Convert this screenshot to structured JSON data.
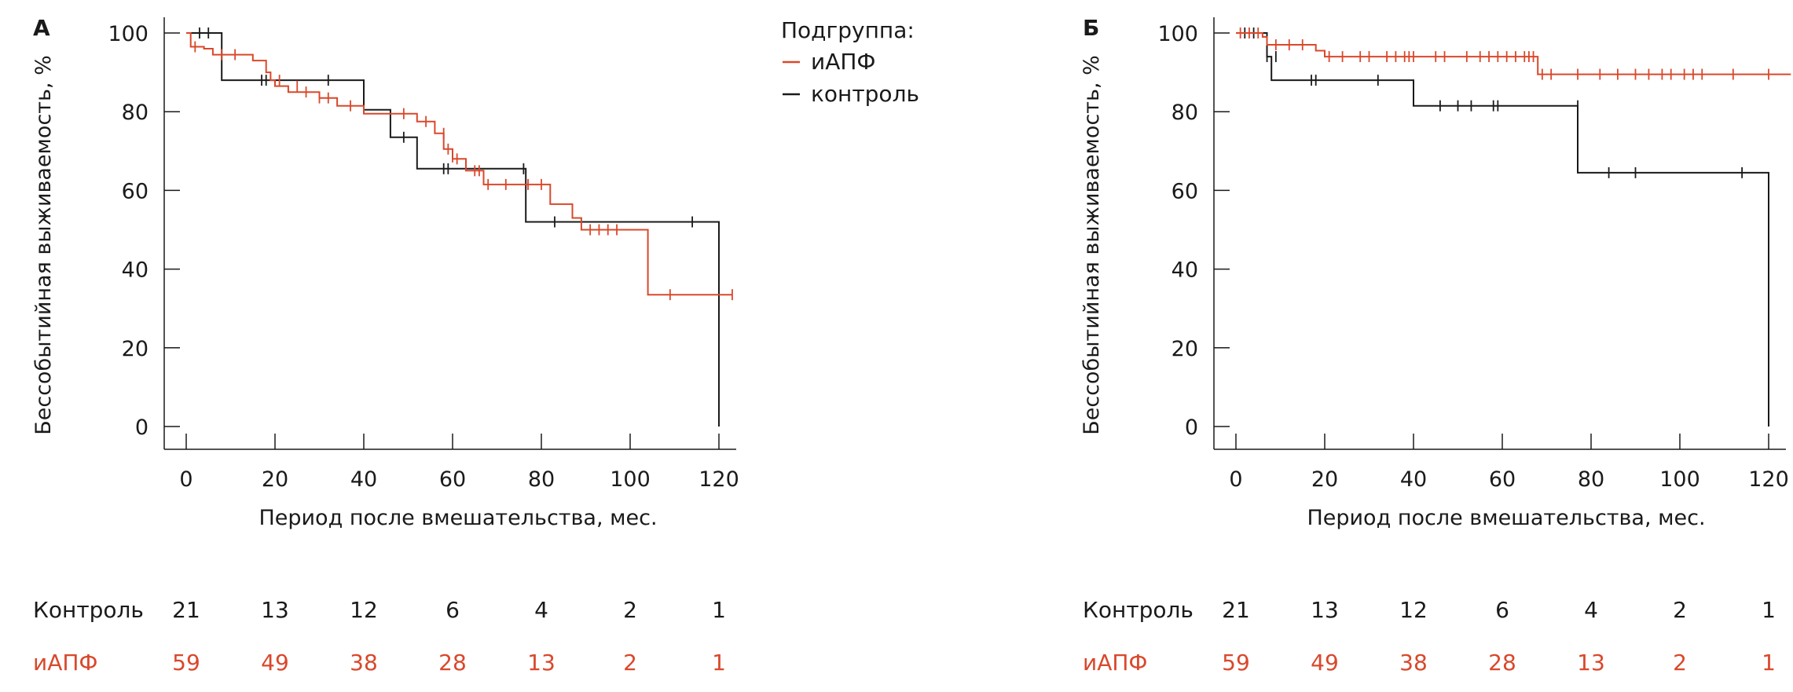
{
  "colors": {
    "iapf": "#d9482b",
    "control": "#1a1a1a",
    "axis": "#1a1a1a"
  },
  "legend": {
    "title": "Подгруппа:",
    "items": [
      {
        "key": "iapf",
        "label": "иАПФ",
        "color": "#d9482b"
      },
      {
        "key": "control",
        "label": "контроль",
        "color": "#1a1a1a"
      }
    ]
  },
  "chart_data": [
    {
      "type": "line",
      "panel": "А",
      "xlabel": "Период после вмешательства, мес.",
      "ylabel": "Бессобытийная выживаемость, %",
      "xlim": [
        0,
        124
      ],
      "ylim": [
        0,
        100
      ],
      "xticks": [
        "0",
        "20",
        "40",
        "60",
        "80",
        "100",
        "120"
      ],
      "yticks": [
        "0",
        "20",
        "40",
        "60",
        "80",
        "100"
      ],
      "series": [
        {
          "name": "контроль",
          "key": "control",
          "steps": [
            [
              0,
              100
            ],
            [
              8,
              100
            ],
            [
              8,
              88
            ],
            [
              40,
              88
            ],
            [
              40,
              80.5
            ],
            [
              46,
              80.5
            ],
            [
              46,
              73.5
            ],
            [
              52,
              73.5
            ],
            [
              52,
              65.5
            ],
            [
              76.5,
              65.5
            ],
            [
              76.5,
              52
            ],
            [
              120,
              52
            ],
            [
              120,
              0
            ]
          ],
          "censors": [
            [
              3,
              100
            ],
            [
              5,
              100
            ],
            [
              17,
              88
            ],
            [
              18,
              88
            ],
            [
              32,
              88
            ],
            [
              49,
              73.5
            ],
            [
              58,
              65.5
            ],
            [
              59,
              65.5
            ],
            [
              76,
              65.5
            ],
            [
              83,
              52
            ],
            [
              114,
              52
            ]
          ]
        },
        {
          "name": "иАПФ",
          "key": "iapf",
          "steps": [
            [
              0,
              100
            ],
            [
              1,
              100
            ],
            [
              1,
              96.5
            ],
            [
              4,
              96.5
            ],
            [
              4,
              96
            ],
            [
              6,
              96
            ],
            [
              6,
              94.5
            ],
            [
              15,
              94.5
            ],
            [
              15,
              93
            ],
            [
              18,
              93
            ],
            [
              18,
              90
            ],
            [
              19,
              90
            ],
            [
              19,
              88
            ],
            [
              20,
              88
            ],
            [
              20,
              86.5
            ],
            [
              23,
              86.5
            ],
            [
              23,
              85
            ],
            [
              30,
              85
            ],
            [
              30,
              83.5
            ],
            [
              34,
              83.5
            ],
            [
              34,
              81.5
            ],
            [
              40,
              81.5
            ],
            [
              40,
              79.5
            ],
            [
              52,
              79.5
            ],
            [
              52,
              77.5
            ],
            [
              56,
              77.5
            ],
            [
              56,
              74.5
            ],
            [
              58,
              74.5
            ],
            [
              58,
              70.5
            ],
            [
              60,
              70.5
            ],
            [
              60,
              68
            ],
            [
              63,
              68
            ],
            [
              63,
              65
            ],
            [
              67,
              65
            ],
            [
              67,
              61.5
            ],
            [
              76,
              61.5
            ],
            [
              76,
              61.5
            ],
            [
              82,
              61.5
            ],
            [
              82,
              56.5
            ],
            [
              87,
              56.5
            ],
            [
              87,
              53
            ],
            [
              89,
              53
            ],
            [
              89,
              50
            ],
            [
              104,
              50
            ],
            [
              104,
              33.5
            ],
            [
              123,
              33.5
            ]
          ],
          "censors": [
            [
              2,
              96.5
            ],
            [
              8,
              94.5
            ],
            [
              11,
              94.5
            ],
            [
              21,
              88
            ],
            [
              25,
              86.5
            ],
            [
              27,
              85
            ],
            [
              30,
              83.5
            ],
            [
              32,
              83.5
            ],
            [
              37,
              81.5
            ],
            [
              49,
              79.5
            ],
            [
              54,
              77.5
            ],
            [
              58,
              74.5
            ],
            [
              59,
              70.5
            ],
            [
              60,
              68.5
            ],
            [
              61,
              68
            ],
            [
              65,
              65
            ],
            [
              66,
              65
            ],
            [
              68,
              61.5
            ],
            [
              72,
              61.5
            ],
            [
              77,
              61.5
            ],
            [
              80,
              61.5
            ],
            [
              91,
              50
            ],
            [
              93,
              50
            ],
            [
              95,
              50
            ],
            [
              97,
              50
            ],
            [
              109,
              33.5
            ],
            [
              123,
              33.5
            ]
          ]
        }
      ],
      "risk_table": {
        "rows": [
          {
            "label": "Контроль",
            "key": "control",
            "values": [
              "21",
              "13",
              "12",
              "6",
              "4",
              "2",
              "1"
            ]
          },
          {
            "label": "иАПФ",
            "key": "iapf",
            "values": [
              "59",
              "49",
              "38",
              "28",
              "13",
              "2",
              "1"
            ]
          }
        ]
      }
    },
    {
      "type": "line",
      "panel": "Б",
      "xlabel": "Период после вмешательства, мес.",
      "ylabel": "Бессобытийная выживаемость, %",
      "xlim": [
        0,
        124
      ],
      "ylim": [
        0,
        100
      ],
      "xticks": [
        "0",
        "20",
        "40",
        "60",
        "80",
        "100",
        "120"
      ],
      "yticks": [
        "0",
        "20",
        "40",
        "60",
        "80",
        "100"
      ],
      "series": [
        {
          "name": "контроль",
          "key": "control",
          "steps": [
            [
              0,
              100
            ],
            [
              7,
              100
            ],
            [
              7,
              94
            ],
            [
              8,
              94
            ],
            [
              8,
              88
            ],
            [
              40,
              88
            ],
            [
              40,
              81.5
            ],
            [
              77,
              81.5
            ],
            [
              77,
              64.5
            ],
            [
              120,
              64.5
            ],
            [
              120,
              0
            ]
          ],
          "censors": [
            [
              2,
              100
            ],
            [
              4,
              100
            ],
            [
              7,
              94
            ],
            [
              9,
              94
            ],
            [
              17,
              88
            ],
            [
              18,
              88
            ],
            [
              32,
              88
            ],
            [
              46,
              81.5
            ],
            [
              50,
              81.5
            ],
            [
              53,
              81.5
            ],
            [
              58,
              81.5
            ],
            [
              59,
              81.5
            ],
            [
              77,
              81.5
            ],
            [
              84,
              64.5
            ],
            [
              90,
              64.5
            ],
            [
              114,
              64.5
            ]
          ]
        },
        {
          "name": "иАПФ",
          "key": "iapf",
          "steps": [
            [
              0,
              100
            ],
            [
              6,
              100
            ],
            [
              6,
              99
            ],
            [
              7,
              99
            ],
            [
              7,
              97
            ],
            [
              18,
              97
            ],
            [
              18,
              95.5
            ],
            [
              20,
              95.5
            ],
            [
              20,
              94
            ],
            [
              68,
              94
            ],
            [
              68,
              89.5
            ],
            [
              125,
              89.5
            ]
          ],
          "censors": [
            [
              1,
              100
            ],
            [
              3,
              100
            ],
            [
              5,
              100
            ],
            [
              9,
              97
            ],
            [
              12,
              97
            ],
            [
              15,
              97
            ],
            [
              21,
              94
            ],
            [
              24,
              94
            ],
            [
              28,
              94
            ],
            [
              30,
              94
            ],
            [
              34,
              94
            ],
            [
              36,
              94
            ],
            [
              38,
              94
            ],
            [
              39,
              94
            ],
            [
              40,
              94
            ],
            [
              45,
              94
            ],
            [
              47,
              94
            ],
            [
              52,
              94
            ],
            [
              55,
              94
            ],
            [
              57,
              94
            ],
            [
              59,
              94
            ],
            [
              61,
              94
            ],
            [
              63,
              94
            ],
            [
              65,
              94
            ],
            [
              66,
              94
            ],
            [
              67,
              94
            ],
            [
              69,
              89.5
            ],
            [
              71,
              89.5
            ],
            [
              77,
              89.5
            ],
            [
              82,
              89.5
            ],
            [
              86,
              89.5
            ],
            [
              90,
              89.5
            ],
            [
              93,
              89.5
            ],
            [
              96,
              89.5
            ],
            [
              98,
              89.5
            ],
            [
              101,
              89.5
            ],
            [
              103,
              89.5
            ],
            [
              105,
              89.5
            ],
            [
              112,
              89.5
            ],
            [
              120,
              89.5
            ]
          ]
        }
      ],
      "risk_table": {
        "rows": [
          {
            "label": "Контроль",
            "key": "control",
            "values": [
              "21",
              "13",
              "12",
              "6",
              "4",
              "2",
              "1"
            ]
          },
          {
            "label": "иАПФ",
            "key": "iapf",
            "values": [
              "59",
              "49",
              "38",
              "28",
              "13",
              "2",
              "1"
            ]
          }
        ]
      }
    }
  ]
}
